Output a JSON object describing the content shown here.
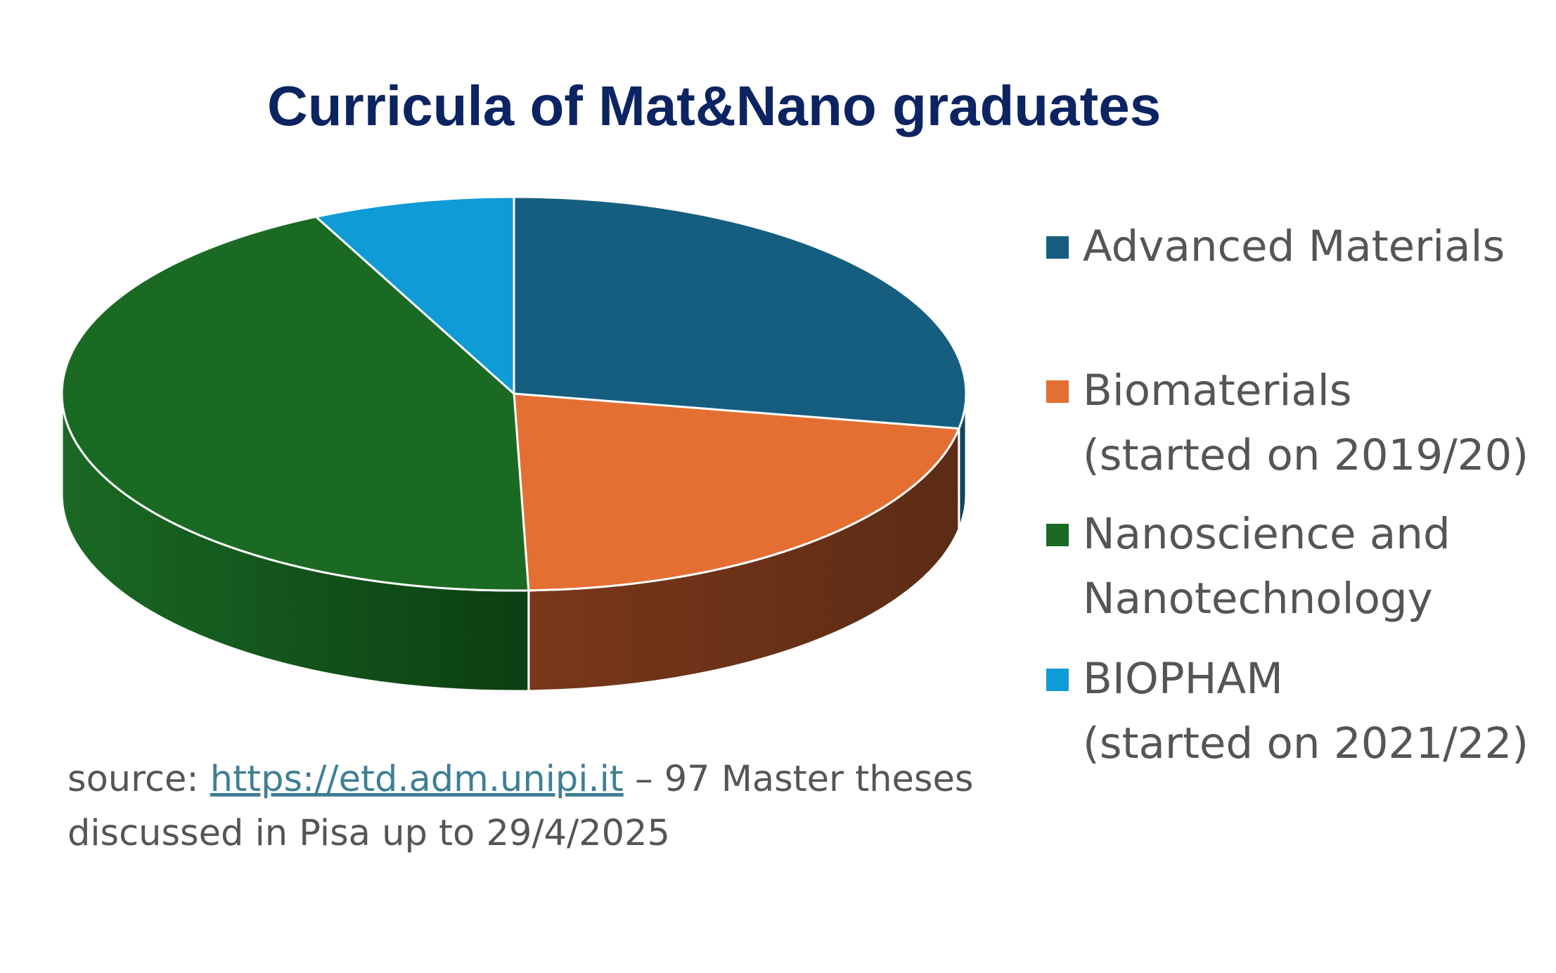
{
  "title": "Curricula of Mat&Nano graduates",
  "chart_data": {
    "type": "pie",
    "title": "Curricula of Mat&Nano graduates",
    "slices": [
      {
        "label": "Advanced Materials",
        "value": 27,
        "color": "#165e80"
      },
      {
        "label": "Biomaterials\n(started on 2019/20)",
        "value": 21,
        "color": "#e46f32"
      },
      {
        "label": "Nanoscience and\nNanotechnology",
        "value": 42,
        "color": "#1b6a24"
      },
      {
        "label": "BIOPHAM\n(started on 2021/22)",
        "value": 7,
        "color": "#0f9bd6"
      }
    ],
    "legend_position": "right",
    "three_d": true
  },
  "source": {
    "prefix": "source: ",
    "link": "https://etd.adm.unipi.it",
    "suffix": " – 97 Master theses discussed in Pisa up to 29/4/2025"
  }
}
